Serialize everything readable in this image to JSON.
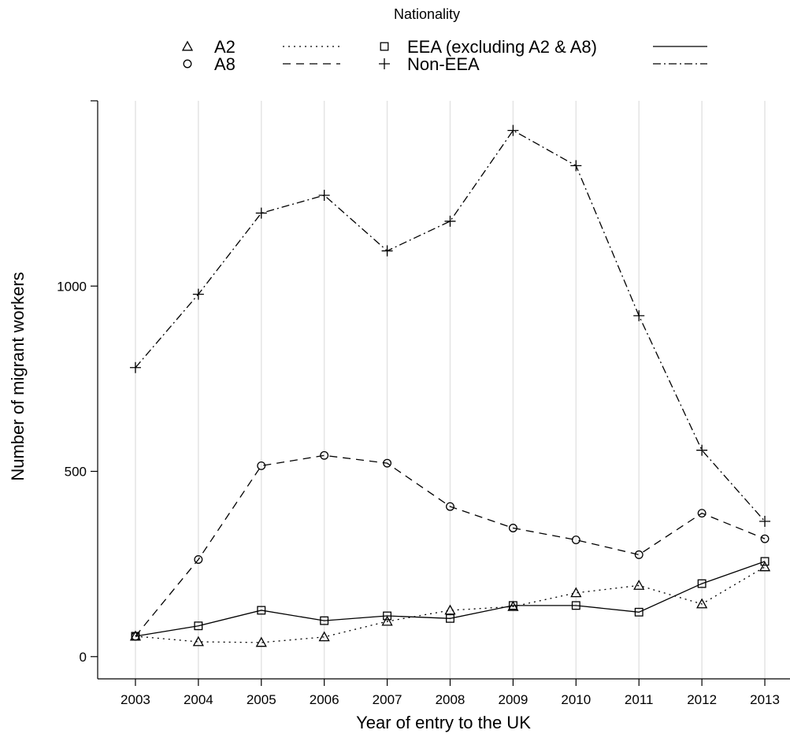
{
  "chart_data": {
    "type": "line",
    "title": "",
    "xlabel": "Year of entry to the UK",
    "ylabel": "Number of migrant workers",
    "legend_title": "Nationality",
    "legend_position": "top",
    "grid": "vertical",
    "x": [
      2003,
      2004,
      2005,
      2006,
      2007,
      2008,
      2009,
      2010,
      2011,
      2012,
      2013
    ],
    "x_tick_labels": [
      "2003",
      "2004",
      "2005",
      "2006",
      "2007",
      "2008",
      "2009",
      "2010",
      "2011",
      "2012",
      "2013"
    ],
    "y_ticks": [
      0,
      500,
      1000
    ],
    "y_tick_labels": [
      "0",
      "500",
      "1000"
    ],
    "xlim": [
      2002.4,
      2013.4
    ],
    "ylim": [
      -60,
      1500
    ],
    "series": [
      {
        "name": "A2",
        "marker": "triangle",
        "line": "dotted",
        "values": [
          55,
          40,
          38,
          53,
          95,
          125,
          135,
          172,
          192,
          142,
          242
        ]
      },
      {
        "name": "A8",
        "marker": "circle",
        "line": "dashed",
        "values": [
          55,
          262,
          515,
          543,
          522,
          405,
          347,
          315,
          275,
          387,
          318
        ]
      },
      {
        "name": "EEA (excluding A2 & A8)",
        "marker": "square",
        "line": "solid",
        "values": [
          55,
          83,
          125,
          97,
          110,
          103,
          138,
          138,
          120,
          197,
          257
        ]
      },
      {
        "name": "Non-EEA",
        "marker": "plus",
        "line": "dotdash",
        "values": [
          780,
          978,
          1197,
          1245,
          1095,
          1175,
          1420,
          1325,
          920,
          557,
          365
        ]
      }
    ]
  }
}
